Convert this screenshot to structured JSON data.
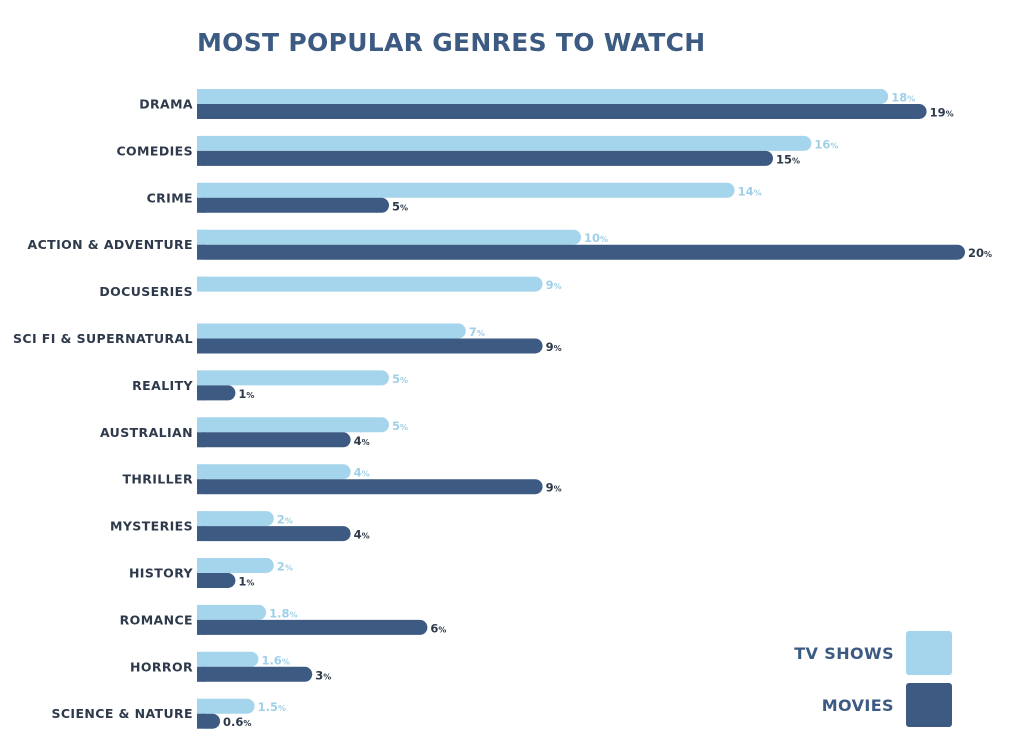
{
  "chart_data": {
    "type": "bar",
    "orientation": "horizontal",
    "title": "MOST POPULAR GENRES TO WATCH",
    "categories": [
      "DRAMA",
      "COMEDIES",
      "CRIME",
      "ACTION & ADVENTURE",
      "DOCUSERIES",
      "SCI FI & SUPERNATURAL",
      "REALITY",
      "AUSTRALIAN",
      "THRILLER",
      "MYSTERIES",
      "HISTORY",
      "ROMANCE",
      "HORROR",
      "SCIENCE & NATURE"
    ],
    "series": [
      {
        "name": "TV SHOWS",
        "color": "#a5d5ec",
        "value_color": "#9fd0e8",
        "values": [
          18,
          16,
          14,
          10,
          9,
          7,
          5,
          5,
          4,
          2,
          2,
          1.8,
          1.6,
          1.5
        ],
        "labels": [
          "18",
          "16",
          "14",
          "10",
          "9",
          "7",
          "5",
          "5",
          "4",
          "2",
          "2",
          "1.8",
          "1.6",
          "1.5"
        ]
      },
      {
        "name": "MOVIES",
        "color": "#3c5a82",
        "value_color": "#2e3a4b",
        "values": [
          19,
          15,
          5,
          20,
          null,
          9,
          1,
          4,
          9,
          4,
          1,
          6,
          3,
          0.6
        ],
        "labels": [
          "19",
          "15",
          "5",
          "20",
          "",
          "9",
          "1",
          "4",
          "9",
          "4",
          "1",
          "6",
          "3",
          "0.6"
        ]
      }
    ],
    "unit": "%",
    "xlim": [
      0,
      20
    ],
    "grid": false,
    "legend_position": "bottom-right"
  },
  "legend": {
    "tv_label": "TV SHOWS",
    "movies_label": "MOVIES"
  }
}
